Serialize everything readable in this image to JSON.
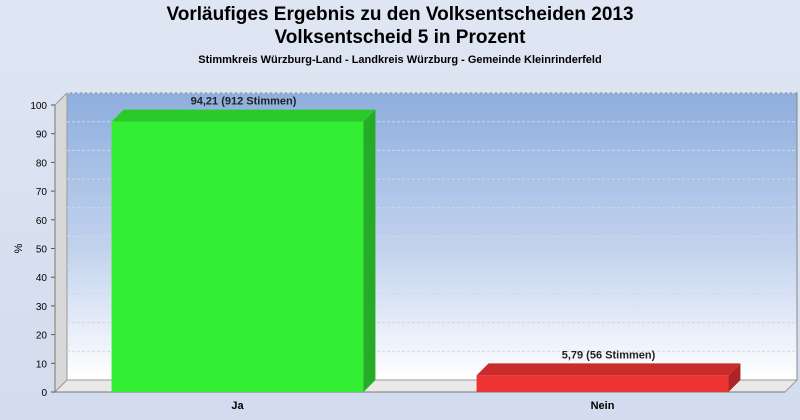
{
  "header": {
    "title": "Vorläufiges Ergebnis zu den Volksentscheiden 2013",
    "subtitle": "Volksentscheid 5 in Prozent",
    "location": "Stimmkreis Würzburg-Land - Landkreis Würzburg - Gemeinde Kleinrinderfeld"
  },
  "chart_data": {
    "type": "bar",
    "title": "Vorläufiges Ergebnis zu den Volksentscheiden 2013",
    "subtitle": "Volksentscheid 5 in Prozent",
    "xlabel": "",
    "ylabel": "%",
    "ylim": [
      0,
      100
    ],
    "yticks": [
      0,
      10,
      20,
      30,
      40,
      50,
      60,
      70,
      80,
      90,
      100
    ],
    "categories": [
      "Ja",
      "Nein"
    ],
    "values": [
      94.21,
      5.79
    ],
    "data_labels": [
      "94,21 (912 Stimmen)",
      "5,79 (56 Stimmen)"
    ],
    "colors": [
      "#33ee33",
      "#ee3333"
    ],
    "legend": "none",
    "grid": true
  }
}
